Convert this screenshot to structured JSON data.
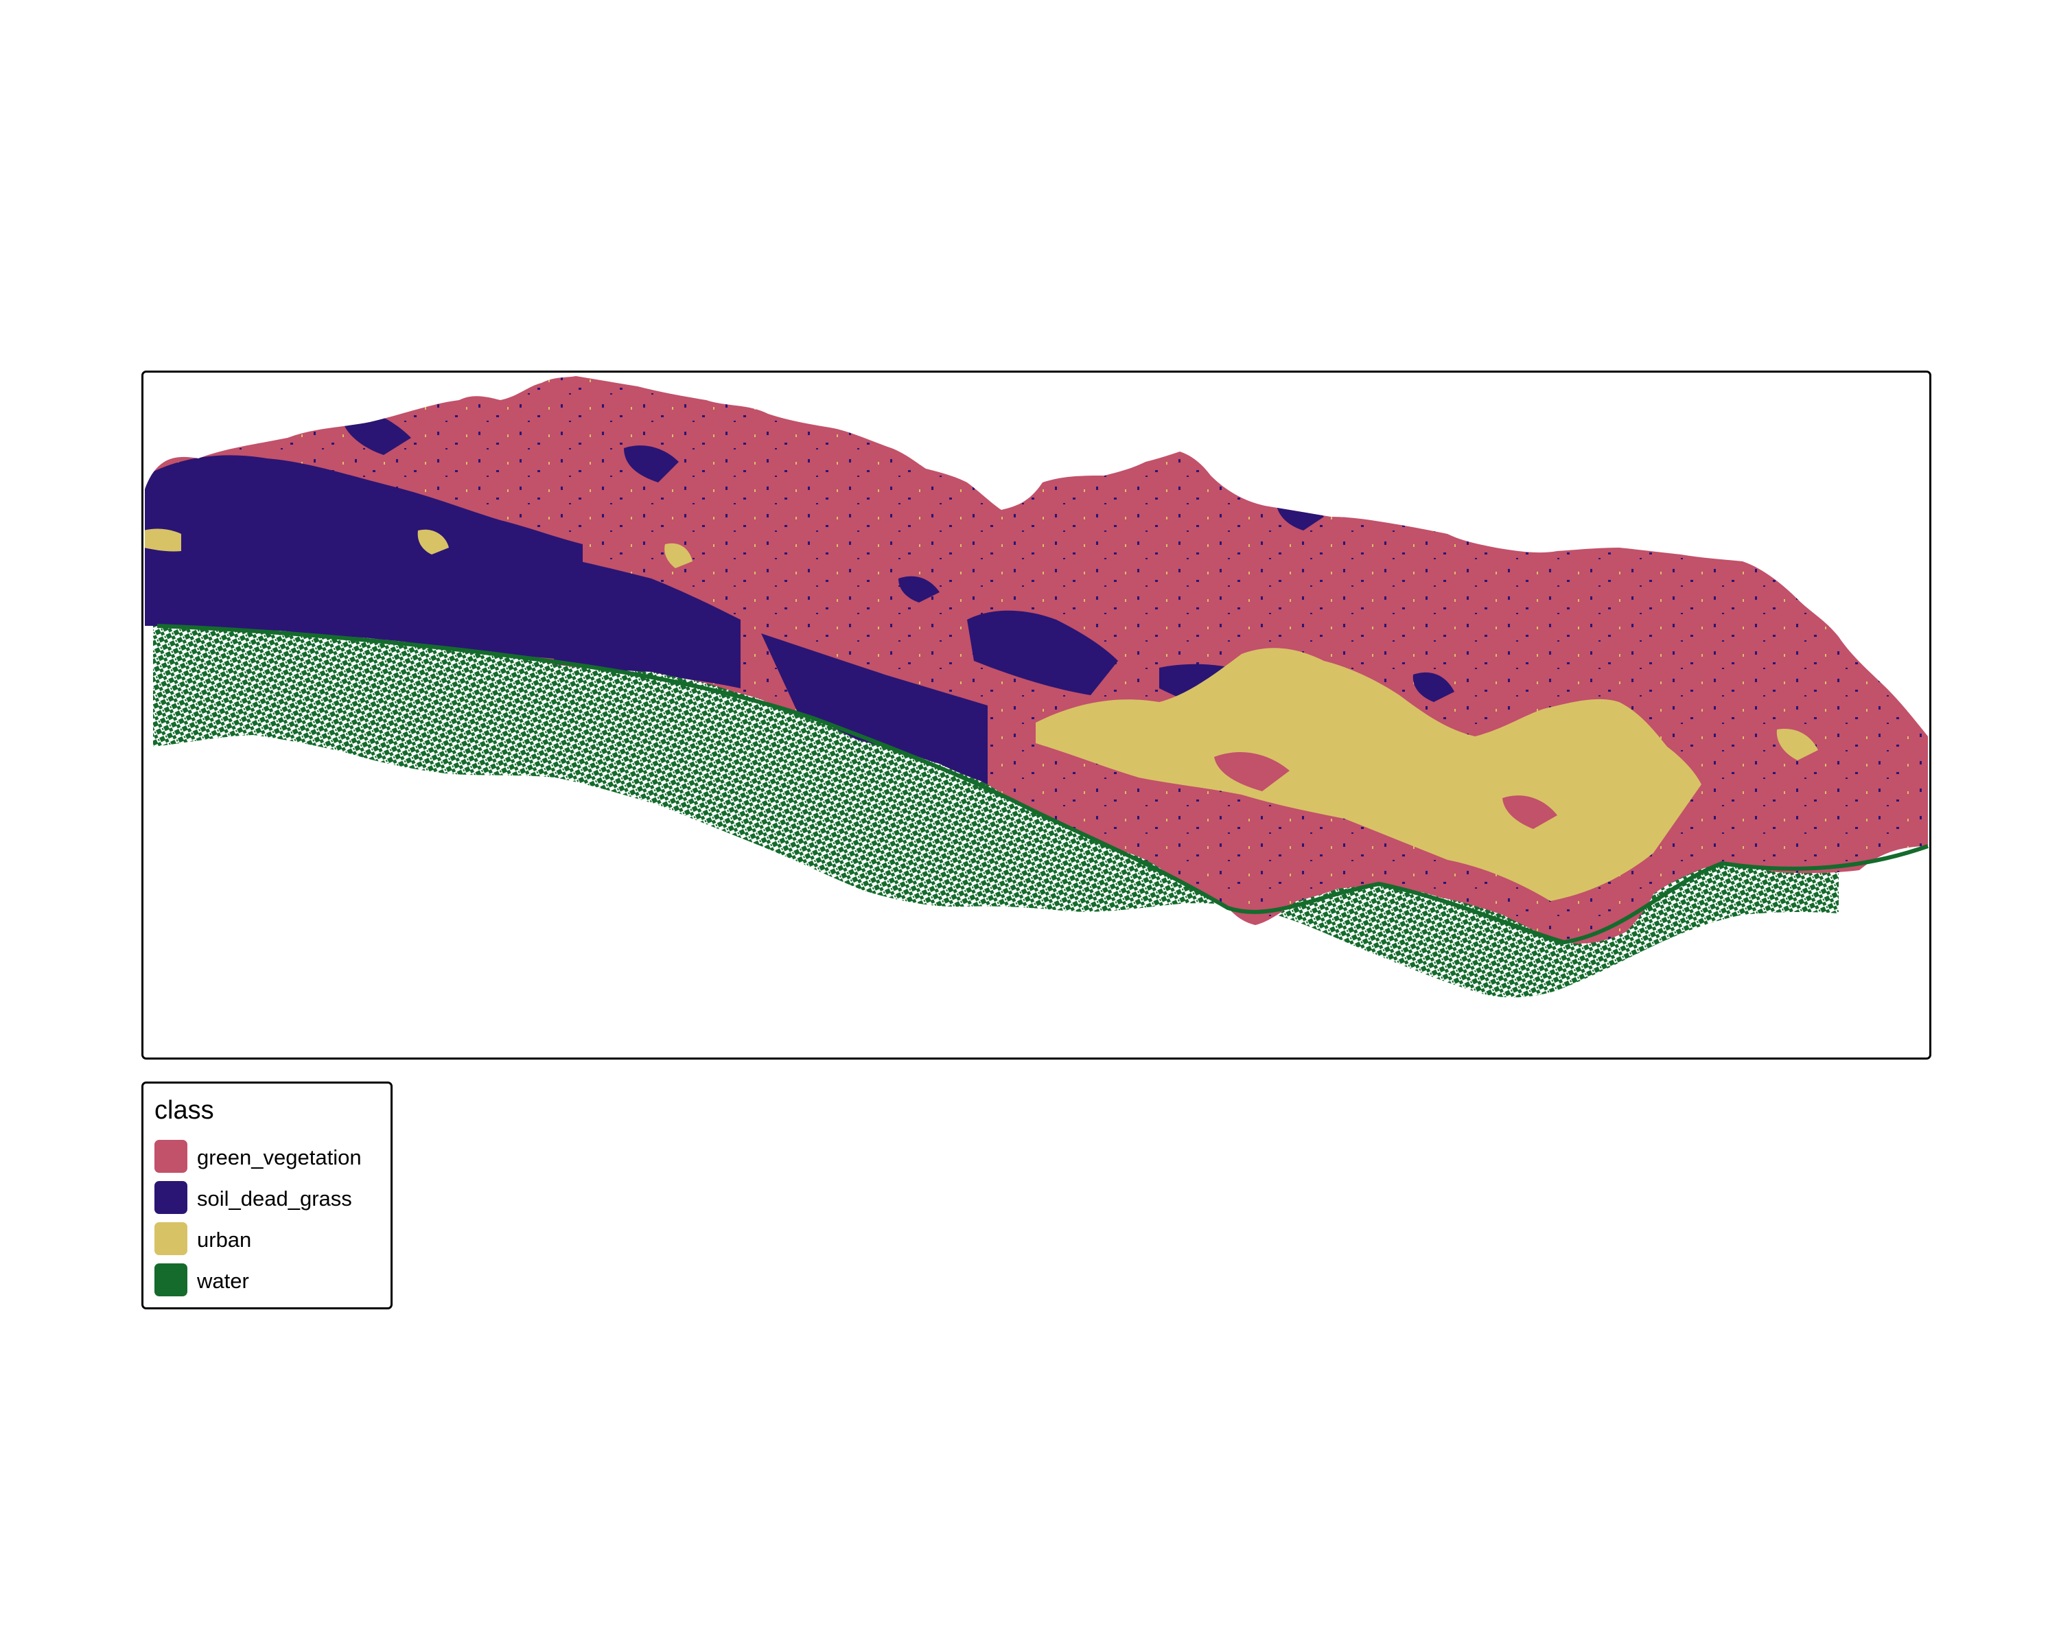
{
  "legend": {
    "title": "class",
    "items": [
      {
        "label": "green_vegetation",
        "color": "#c2516a"
      },
      {
        "label": "soil_dead_grass",
        "color": "#2a1574"
      },
      {
        "label": "urban",
        "color": "#d8c266"
      },
      {
        "label": "water",
        "color": "#146b2c"
      }
    ]
  }
}
